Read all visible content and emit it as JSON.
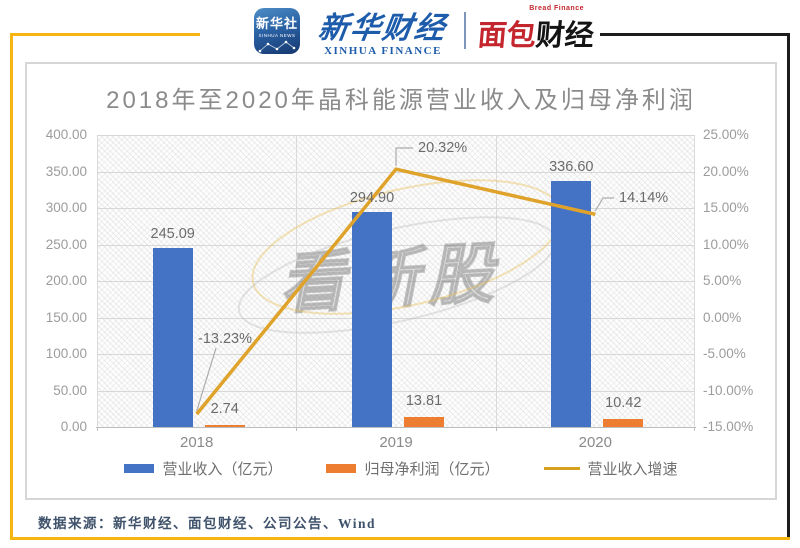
{
  "header": {
    "xinhua_app": {
      "name_cn": "新华社",
      "name_en": "XINHUA NEWS"
    },
    "xinhua_finance": {
      "name_cn": "新华财经",
      "name_en": "XINHUA FINANCE"
    },
    "bread_finance": {
      "tagline_en": "Bread Finance",
      "name_part1": "面包",
      "name_part2": "财经"
    }
  },
  "chart_data": {
    "type": "bar",
    "subtype": "combo-bar-line-dual-axis",
    "title": "2018年至2020年晶科能源营业收入及归母净利润",
    "categories": [
      "2018",
      "2019",
      "2020"
    ],
    "series": [
      {
        "name": "营业收入（亿元）",
        "chart_type": "bar",
        "color": "#4472C4",
        "axis": "left",
        "values": [
          245.09,
          294.9,
          336.6
        ],
        "labels": [
          "245.09",
          "294.90",
          "336.60"
        ]
      },
      {
        "name": "归母净利润（亿元）",
        "chart_type": "bar",
        "color": "#ED7D31",
        "axis": "left",
        "values": [
          2.74,
          13.81,
          10.42
        ],
        "labels": [
          "2.74",
          "13.81",
          "10.42"
        ]
      },
      {
        "name": "营业收入增速",
        "chart_type": "line",
        "color": "#DFA32B",
        "axis": "right",
        "values": [
          -13.23,
          20.32,
          14.14
        ],
        "labels": [
          "-13.23%",
          "20.32%",
          "14.14%"
        ]
      }
    ],
    "left_axis": {
      "min": 0,
      "max": 400,
      "step": 50,
      "labels": [
        "400.00",
        "350.00",
        "300.00",
        "250.00",
        "200.00",
        "150.00",
        "100.00",
        "50.00",
        "0.00"
      ]
    },
    "right_axis": {
      "min": -15,
      "max": 25,
      "step": 5,
      "labels": [
        "25.00%",
        "20.00%",
        "15.00%",
        "10.00%",
        "5.00%",
        "0.00%",
        "-5.00%",
        "-10.00%",
        "-15.00%"
      ]
    },
    "grid": true,
    "legend_position": "bottom"
  },
  "watermark": {
    "text": "看新股"
  },
  "footer": {
    "source": "数据来源：新华财经、面包财经、公司公告、Wind"
  },
  "colors": {
    "revenue_bar": "#4472C4",
    "profit_bar": "#ED7D31",
    "growth_line": "#DFA32B",
    "frame_yellow": "#F6B511",
    "frame_black": "#1C1C1C"
  }
}
